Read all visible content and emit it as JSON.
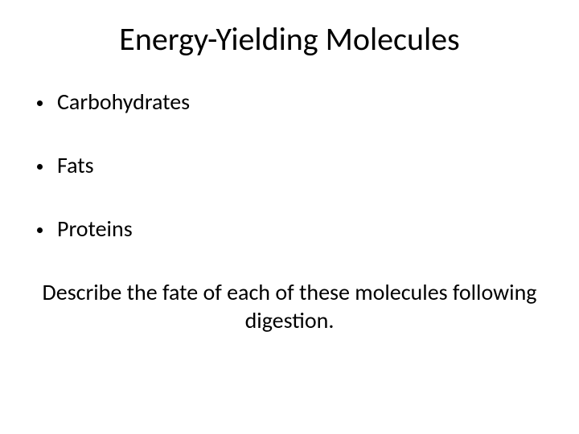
{
  "slide": {
    "title": "Energy-Yielding Molecules",
    "title_fontsize": 40,
    "bullets": [
      {
        "label": "Carbohydrates"
      },
      {
        "label": "Fats"
      },
      {
        "label": "Proteins"
      }
    ],
    "bullet_fontsize": 28,
    "bullet_marker_color": "#000000",
    "closing_text": "Describe the fate of each of these molecules following digestion.",
    "closing_fontsize": 28,
    "background_color": "#ffffff",
    "text_color": "#000000"
  }
}
